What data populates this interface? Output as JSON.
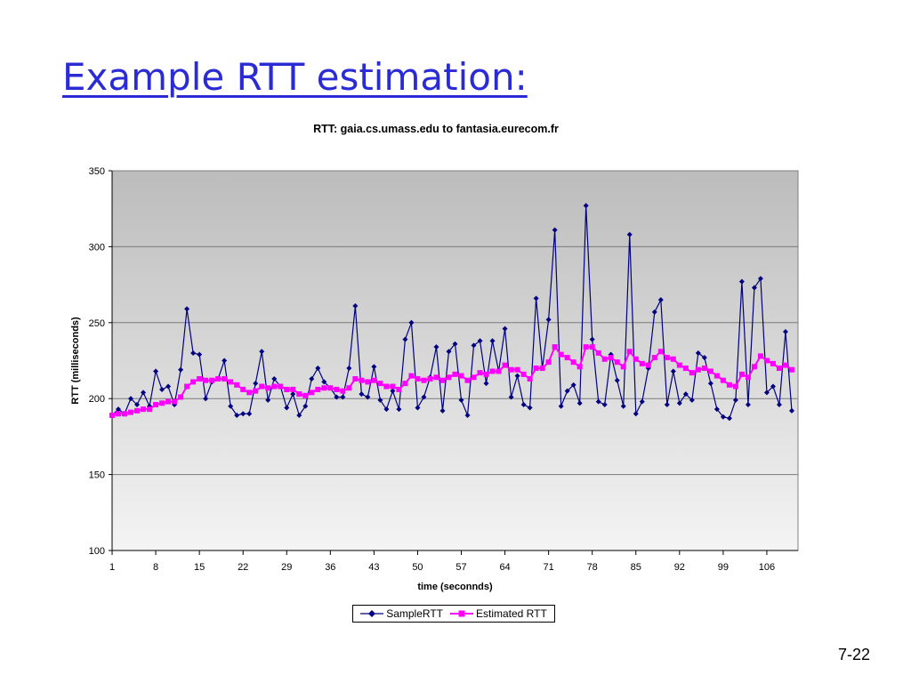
{
  "slide": {
    "title": "Example RTT estimation:",
    "page_number": "7-22"
  },
  "colors": {
    "sample": "#000080",
    "estimated": "#ff00ff",
    "title": "#2b2bd6"
  },
  "chart_data": {
    "type": "line",
    "title": "RTT: gaia.cs.umass.edu to fantasia.eurecom.fr",
    "xlabel": "time (seconnds)",
    "ylabel": "RTT (milliseconds)",
    "xlim": [
      1,
      111
    ],
    "ylim": [
      100,
      350
    ],
    "yticks": [
      100,
      150,
      200,
      250,
      300,
      350
    ],
    "xticks": [
      1,
      8,
      15,
      22,
      29,
      36,
      43,
      50,
      57,
      64,
      71,
      78,
      85,
      92,
      99,
      106
    ],
    "grid": true,
    "legend_position": "bottom",
    "series": [
      {
        "name": "SampleRTT",
        "marker": "diamond",
        "values": [
          189,
          193,
          190,
          200,
          196,
          204,
          195,
          218,
          206,
          208,
          196,
          219,
          259,
          230,
          229,
          200,
          211,
          213,
          225,
          195,
          189,
          190,
          190,
          210,
          231,
          199,
          213,
          208,
          194,
          203,
          189,
          195,
          213,
          220,
          211,
          207,
          201,
          201,
          220,
          261,
          203,
          201,
          221,
          199,
          193,
          205,
          193,
          239,
          250,
          194,
          201,
          214,
          234,
          192,
          231,
          236,
          199,
          189,
          235,
          238,
          210,
          238,
          218,
          246,
          201,
          215,
          196,
          194,
          266,
          220,
          252,
          311,
          195,
          205,
          209,
          197,
          327,
          239,
          198,
          196,
          229,
          212,
          195,
          308,
          190,
          198,
          220,
          257,
          265,
          196,
          218,
          197,
          203,
          199,
          230,
          227,
          210,
          193,
          188,
          187,
          199,
          277,
          196,
          273,
          279,
          204,
          208,
          196,
          244,
          192
        ]
      },
      {
        "name": "Estimated RTT",
        "marker": "square",
        "values": [
          189,
          190,
          190,
          191,
          192,
          193,
          193,
          196,
          197,
          198,
          198,
          201,
          208,
          211,
          213,
          212,
          212,
          213,
          213,
          211,
          209,
          206,
          204,
          205,
          208,
          207,
          208,
          208,
          206,
          206,
          203,
          202,
          204,
          206,
          207,
          207,
          206,
          205,
          207,
          213,
          212,
          211,
          212,
          210,
          208,
          208,
          206,
          210,
          215,
          213,
          212,
          213,
          214,
          212,
          214,
          216,
          215,
          212,
          214,
          217,
          216,
          218,
          218,
          222,
          219,
          219,
          216,
          213,
          220,
          220,
          224,
          234,
          229,
          227,
          224,
          221,
          234,
          234,
          230,
          226,
          227,
          224,
          221,
          231,
          226,
          223,
          222,
          227,
          231,
          227,
          226,
          222,
          220,
          217,
          219,
          220,
          218,
          215,
          212,
          209,
          208,
          216,
          214,
          221,
          228,
          225,
          223,
          220,
          222,
          219
        ]
      }
    ]
  }
}
